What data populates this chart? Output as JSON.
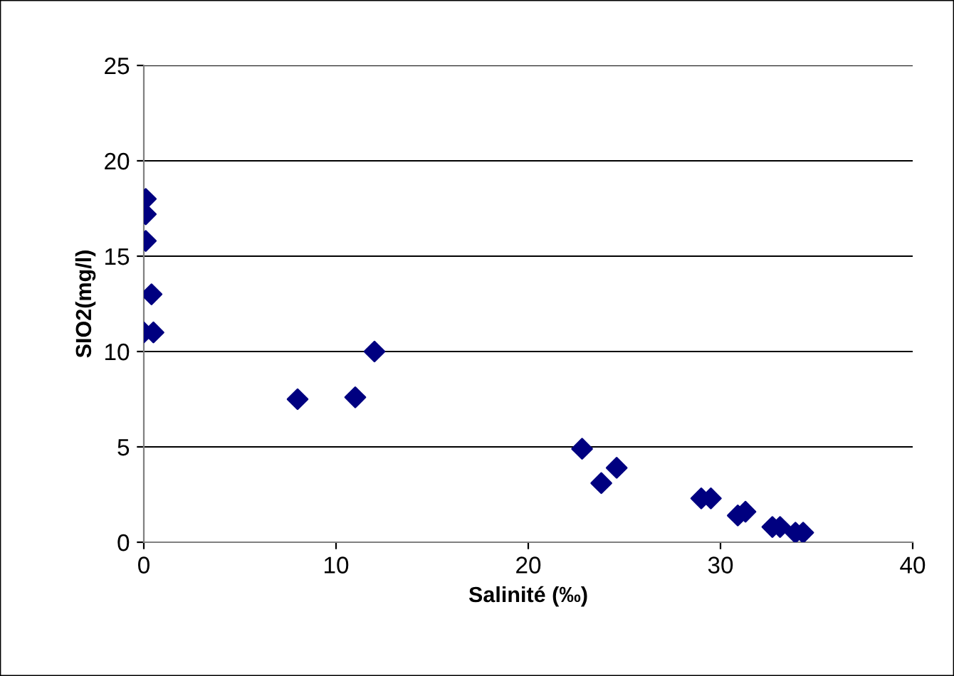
{
  "chart_data": {
    "type": "scatter",
    "xlabel": "Salinité (‰)",
    "ylabel": "SIO2(mg/l)",
    "x": [
      0.1,
      0.1,
      0.1,
      0.4,
      0,
      0.5,
      8,
      11,
      12,
      22.8,
      23.8,
      24.6,
      29,
      29.5,
      30.9,
      31.3,
      32.7,
      33.1,
      33.9,
      34.3
    ],
    "series": [
      {
        "color": "#000080",
        "values": [
          18,
          17.2,
          15.8,
          13,
          11,
          11,
          7.5,
          7.6,
          10,
          4.9,
          3.1,
          3.9,
          2.3,
          2.3,
          1.4,
          1.6,
          0.8,
          0.8,
          0.5,
          0.5
        ]
      }
    ],
    "marker": "diamond",
    "xlim": [
      0,
      40
    ],
    "xticks": [
      0,
      10,
      20,
      30,
      40
    ],
    "ylim": [
      0,
      25
    ],
    "yticks": [
      0,
      5,
      10,
      15,
      20,
      25
    ],
    "grid": "y"
  }
}
